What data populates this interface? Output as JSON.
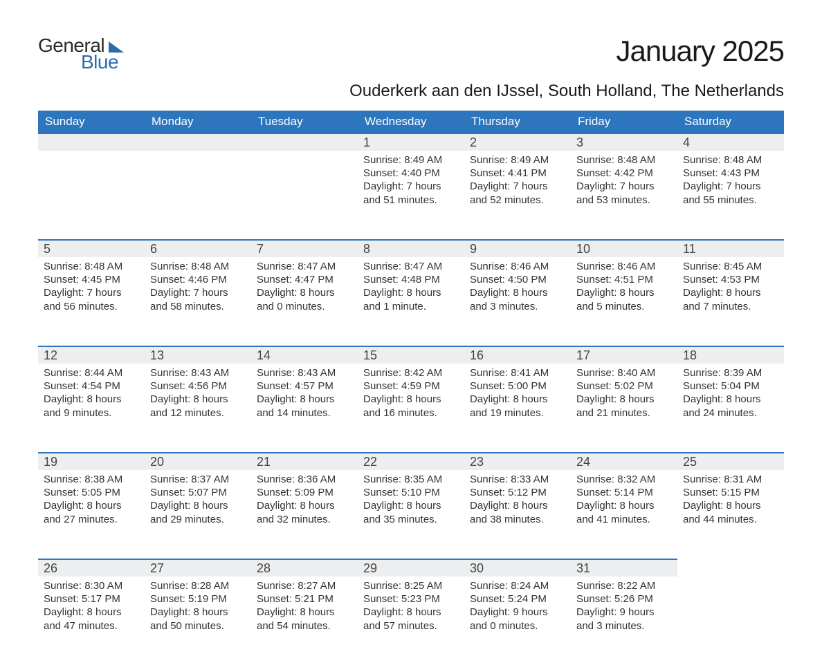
{
  "logo": {
    "text1": "General",
    "text2": "Blue"
  },
  "title": "January 2025",
  "location": "Ouderkerk aan den IJssel, South Holland, The Netherlands",
  "style": {
    "header_bg": "#2d76bd",
    "header_fg": "#ffffff",
    "daynum_bg": "#eceeef",
    "daynum_border": "#2d76bd",
    "page_bg": "#ffffff",
    "body_color": "#333333",
    "title_fontsize_pt": 32,
    "location_fontsize_pt": 18,
    "cell_fontsize_pt": 11
  },
  "day_headers": [
    "Sunday",
    "Monday",
    "Tuesday",
    "Wednesday",
    "Thursday",
    "Friday",
    "Saturday"
  ],
  "weeks": [
    [
      null,
      null,
      null,
      {
        "n": "1",
        "sr": "Sunrise: 8:49 AM",
        "ss": "Sunset: 4:40 PM",
        "d1": "Daylight: 7 hours",
        "d2": "and 51 minutes."
      },
      {
        "n": "2",
        "sr": "Sunrise: 8:49 AM",
        "ss": "Sunset: 4:41 PM",
        "d1": "Daylight: 7 hours",
        "d2": "and 52 minutes."
      },
      {
        "n": "3",
        "sr": "Sunrise: 8:48 AM",
        "ss": "Sunset: 4:42 PM",
        "d1": "Daylight: 7 hours",
        "d2": "and 53 minutes."
      },
      {
        "n": "4",
        "sr": "Sunrise: 8:48 AM",
        "ss": "Sunset: 4:43 PM",
        "d1": "Daylight: 7 hours",
        "d2": "and 55 minutes."
      }
    ],
    [
      {
        "n": "5",
        "sr": "Sunrise: 8:48 AM",
        "ss": "Sunset: 4:45 PM",
        "d1": "Daylight: 7 hours",
        "d2": "and 56 minutes."
      },
      {
        "n": "6",
        "sr": "Sunrise: 8:48 AM",
        "ss": "Sunset: 4:46 PM",
        "d1": "Daylight: 7 hours",
        "d2": "and 58 minutes."
      },
      {
        "n": "7",
        "sr": "Sunrise: 8:47 AM",
        "ss": "Sunset: 4:47 PM",
        "d1": "Daylight: 8 hours",
        "d2": "and 0 minutes."
      },
      {
        "n": "8",
        "sr": "Sunrise: 8:47 AM",
        "ss": "Sunset: 4:48 PM",
        "d1": "Daylight: 8 hours",
        "d2": "and 1 minute."
      },
      {
        "n": "9",
        "sr": "Sunrise: 8:46 AM",
        "ss": "Sunset: 4:50 PM",
        "d1": "Daylight: 8 hours",
        "d2": "and 3 minutes."
      },
      {
        "n": "10",
        "sr": "Sunrise: 8:46 AM",
        "ss": "Sunset: 4:51 PM",
        "d1": "Daylight: 8 hours",
        "d2": "and 5 minutes."
      },
      {
        "n": "11",
        "sr": "Sunrise: 8:45 AM",
        "ss": "Sunset: 4:53 PM",
        "d1": "Daylight: 8 hours",
        "d2": "and 7 minutes."
      }
    ],
    [
      {
        "n": "12",
        "sr": "Sunrise: 8:44 AM",
        "ss": "Sunset: 4:54 PM",
        "d1": "Daylight: 8 hours",
        "d2": "and 9 minutes."
      },
      {
        "n": "13",
        "sr": "Sunrise: 8:43 AM",
        "ss": "Sunset: 4:56 PM",
        "d1": "Daylight: 8 hours",
        "d2": "and 12 minutes."
      },
      {
        "n": "14",
        "sr": "Sunrise: 8:43 AM",
        "ss": "Sunset: 4:57 PM",
        "d1": "Daylight: 8 hours",
        "d2": "and 14 minutes."
      },
      {
        "n": "15",
        "sr": "Sunrise: 8:42 AM",
        "ss": "Sunset: 4:59 PM",
        "d1": "Daylight: 8 hours",
        "d2": "and 16 minutes."
      },
      {
        "n": "16",
        "sr": "Sunrise: 8:41 AM",
        "ss": "Sunset: 5:00 PM",
        "d1": "Daylight: 8 hours",
        "d2": "and 19 minutes."
      },
      {
        "n": "17",
        "sr": "Sunrise: 8:40 AM",
        "ss": "Sunset: 5:02 PM",
        "d1": "Daylight: 8 hours",
        "d2": "and 21 minutes."
      },
      {
        "n": "18",
        "sr": "Sunrise: 8:39 AM",
        "ss": "Sunset: 5:04 PM",
        "d1": "Daylight: 8 hours",
        "d2": "and 24 minutes."
      }
    ],
    [
      {
        "n": "19",
        "sr": "Sunrise: 8:38 AM",
        "ss": "Sunset: 5:05 PM",
        "d1": "Daylight: 8 hours",
        "d2": "and 27 minutes."
      },
      {
        "n": "20",
        "sr": "Sunrise: 8:37 AM",
        "ss": "Sunset: 5:07 PM",
        "d1": "Daylight: 8 hours",
        "d2": "and 29 minutes."
      },
      {
        "n": "21",
        "sr": "Sunrise: 8:36 AM",
        "ss": "Sunset: 5:09 PM",
        "d1": "Daylight: 8 hours",
        "d2": "and 32 minutes."
      },
      {
        "n": "22",
        "sr": "Sunrise: 8:35 AM",
        "ss": "Sunset: 5:10 PM",
        "d1": "Daylight: 8 hours",
        "d2": "and 35 minutes."
      },
      {
        "n": "23",
        "sr": "Sunrise: 8:33 AM",
        "ss": "Sunset: 5:12 PM",
        "d1": "Daylight: 8 hours",
        "d2": "and 38 minutes."
      },
      {
        "n": "24",
        "sr": "Sunrise: 8:32 AM",
        "ss": "Sunset: 5:14 PM",
        "d1": "Daylight: 8 hours",
        "d2": "and 41 minutes."
      },
      {
        "n": "25",
        "sr": "Sunrise: 8:31 AM",
        "ss": "Sunset: 5:15 PM",
        "d1": "Daylight: 8 hours",
        "d2": "and 44 minutes."
      }
    ],
    [
      {
        "n": "26",
        "sr": "Sunrise: 8:30 AM",
        "ss": "Sunset: 5:17 PM",
        "d1": "Daylight: 8 hours",
        "d2": "and 47 minutes."
      },
      {
        "n": "27",
        "sr": "Sunrise: 8:28 AM",
        "ss": "Sunset: 5:19 PM",
        "d1": "Daylight: 8 hours",
        "d2": "and 50 minutes."
      },
      {
        "n": "28",
        "sr": "Sunrise: 8:27 AM",
        "ss": "Sunset: 5:21 PM",
        "d1": "Daylight: 8 hours",
        "d2": "and 54 minutes."
      },
      {
        "n": "29",
        "sr": "Sunrise: 8:25 AM",
        "ss": "Sunset: 5:23 PM",
        "d1": "Daylight: 8 hours",
        "d2": "and 57 minutes."
      },
      {
        "n": "30",
        "sr": "Sunrise: 8:24 AM",
        "ss": "Sunset: 5:24 PM",
        "d1": "Daylight: 9 hours",
        "d2": "and 0 minutes."
      },
      {
        "n": "31",
        "sr": "Sunrise: 8:22 AM",
        "ss": "Sunset: 5:26 PM",
        "d1": "Daylight: 9 hours",
        "d2": "and 3 minutes."
      },
      null
    ]
  ]
}
